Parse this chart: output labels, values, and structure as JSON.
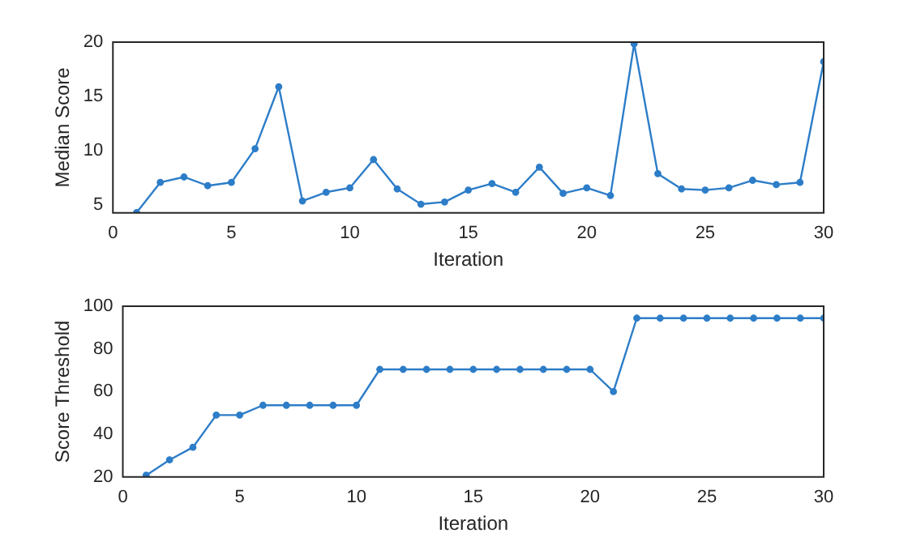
{
  "chart_data": [
    {
      "type": "line",
      "xlabel": "Iteration",
      "ylabel": "Median Score",
      "color": "#2d7dc8",
      "marker": "circle",
      "x": [
        1,
        2,
        3,
        4,
        5,
        6,
        7,
        8,
        9,
        10,
        11,
        12,
        13,
        14,
        15,
        16,
        17,
        18,
        19,
        20,
        21,
        22,
        23,
        24,
        25,
        26,
        27,
        28,
        29,
        30
      ],
      "values": [
        4.33,
        7.1,
        7.6,
        6.8,
        7.1,
        10.2,
        15.9,
        5.4,
        6.2,
        6.6,
        9.2,
        6.5,
        5.1,
        5.3,
        6.4,
        7.0,
        6.2,
        8.5,
        6.1,
        6.6,
        5.9,
        19.85,
        7.9,
        6.5,
        6.4,
        6.6,
        7.3,
        6.9,
        7.1,
        18.2
      ],
      "xlim": [
        0,
        30
      ],
      "xticks": [
        0,
        5,
        10,
        15,
        20,
        25,
        30
      ],
      "ylim": [
        4.3,
        20
      ],
      "yticks": [
        5,
        10,
        15,
        20
      ]
    },
    {
      "type": "line",
      "xlabel": "Iteration",
      "ylabel": "Score Threshold",
      "color": "#2d7dc8",
      "marker": "circle",
      "x": [
        1,
        2,
        3,
        4,
        5,
        6,
        7,
        8,
        9,
        10,
        11,
        12,
        13,
        14,
        15,
        16,
        17,
        18,
        19,
        20,
        21,
        22,
        23,
        24,
        25,
        26,
        27,
        28,
        29,
        30
      ],
      "values": [
        20.8,
        28,
        33.9,
        49,
        49,
        53.6,
        53.6,
        53.6,
        53.6,
        53.6,
        70.4,
        70.4,
        70.4,
        70.4,
        70.4,
        70.4,
        70.4,
        70.4,
        70.4,
        70.4,
        60,
        94.4,
        94.4,
        94.4,
        94.4,
        94.4,
        94.4,
        94.4,
        94.4,
        94.4
      ],
      "xlim": [
        0,
        30
      ],
      "xticks": [
        0,
        5,
        10,
        15,
        20,
        25,
        30
      ],
      "ylim": [
        20,
        100
      ],
      "yticks": [
        20,
        40,
        60,
        80,
        100
      ]
    }
  ]
}
